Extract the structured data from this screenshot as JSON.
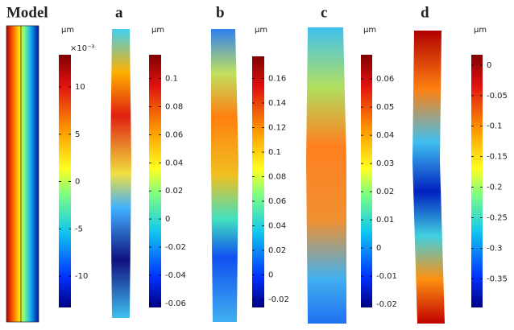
{
  "panels": [
    {
      "label": "Model",
      "unit": "μm",
      "multiplier": "×10⁻³",
      "colorbar": {
        "lim": [
          -13.3,
          13.4
        ],
        "ticks": [
          10,
          5,
          0,
          -5,
          -10
        ]
      }
    },
    {
      "label": "a",
      "unit": "μm",
      "colorbar": {
        "lim": [
          -0.063,
          0.117
        ],
        "ticks": [
          0.1,
          0.08,
          0.06,
          0.04,
          0.02,
          0,
          -0.02,
          -0.04,
          -0.06
        ]
      }
    },
    {
      "label": "b",
      "unit": "μm",
      "colorbar": {
        "lim": [
          -0.0265,
          0.178
        ],
        "ticks": [
          0.16,
          0.14,
          0.12,
          0.1,
          0.08,
          0.06,
          0.04,
          0.02,
          0,
          -0.02
        ]
      }
    },
    {
      "label": "c",
      "unit": "μm",
      "colorbar": {
        "lim": [
          -0.0211,
          0.0686
        ],
        "ticks": [
          0.06,
          0.05,
          0.04,
          0.03,
          0.02,
          0.01,
          0,
          -0.01,
          -0.02
        ]
      }
    },
    {
      "label": "d",
      "unit": "μm",
      "colorbar": {
        "lim": [
          -0.397,
          0.017
        ],
        "ticks": [
          0,
          -0.05,
          -0.1,
          -0.15,
          -0.2,
          -0.25,
          -0.3,
          -0.35
        ]
      }
    }
  ]
}
